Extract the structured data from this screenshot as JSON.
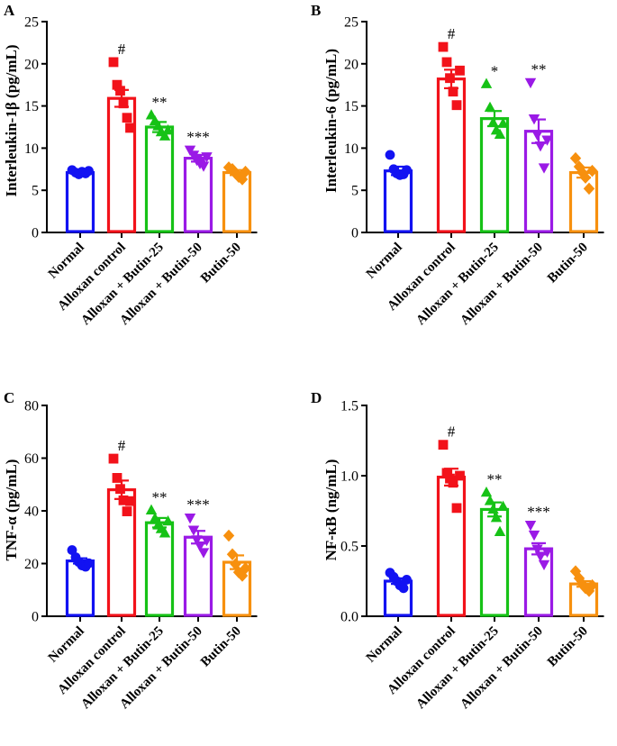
{
  "figure": {
    "categories": [
      "Normal",
      "Alloxan control",
      "Alloxan + Butin-25",
      "Alloxan + Butin-50",
      "Butin-50"
    ],
    "colors": [
      "#1212F2",
      "#F2121A",
      "#16C216",
      "#9A1AE6",
      "#F7900E"
    ],
    "markers": [
      "circle",
      "square",
      "triangle-up",
      "triangle-down",
      "diamond"
    ]
  },
  "chart_data": [
    {
      "type": "bar",
      "panel": "A",
      "ylabel": "Interleukin-1β (pg/mL)",
      "ylim": [
        0,
        25
      ],
      "yticks": [
        0,
        5,
        10,
        15,
        20,
        25
      ],
      "yticklabels": [
        "0",
        "5",
        "10",
        "15",
        "20",
        "25"
      ],
      "categories": [
        "Normal",
        "Alloxan control",
        "Alloxan + Butin-25",
        "Alloxan + Butin-50",
        "Butin-50"
      ],
      "values": [
        7.1,
        15.9,
        12.5,
        8.8,
        7.1
      ],
      "sem": [
        0.2,
        1.0,
        0.6,
        0.4,
        0.3
      ],
      "points": [
        [
          7.4,
          7.1,
          6.9,
          7.2,
          7.0,
          7.3
        ],
        [
          20.2,
          17.5,
          16.8,
          15.3,
          13.6,
          12.4
        ],
        [
          13.9,
          13.2,
          12.6,
          11.9,
          11.4,
          12.1
        ],
        [
          9.8,
          9.2,
          8.6,
          8.2,
          7.9,
          9.0
        ],
        [
          7.7,
          7.5,
          7.0,
          6.6,
          6.3,
          7.2
        ]
      ],
      "annotations": [
        "",
        "#",
        "**",
        "***",
        ""
      ]
    },
    {
      "type": "bar",
      "panel": "B",
      "ylabel": "Interleukin-6 (pg/mL)",
      "ylim": [
        0,
        25
      ],
      "yticks": [
        0,
        5,
        10,
        15,
        20,
        25
      ],
      "yticklabels": [
        "0",
        "5",
        "10",
        "15",
        "20",
        "25"
      ],
      "categories": [
        "Normal",
        "Alloxan control",
        "Alloxan + Butin-25",
        "Alloxan + Butin-50",
        "Butin-50"
      ],
      "values": [
        7.3,
        18.2,
        13.5,
        12.0,
        7.1
      ],
      "sem": [
        0.5,
        1.1,
        0.9,
        1.4,
        0.6
      ],
      "points": [
        [
          9.2,
          7.5,
          7.0,
          6.8,
          6.9,
          7.4
        ],
        [
          22.0,
          20.2,
          18.3,
          16.7,
          15.1,
          19.2
        ],
        [
          17.6,
          14.8,
          13.0,
          12.1,
          11.6,
          12.9
        ],
        [
          17.8,
          13.5,
          11.6,
          10.3,
          7.7,
          11.0
        ],
        [
          8.8,
          7.8,
          7.1,
          6.5,
          5.2,
          7.3
        ]
      ],
      "annotations": [
        "",
        "#",
        "*",
        "**",
        ""
      ]
    },
    {
      "type": "bar",
      "panel": "C",
      "ylabel": "TNF-α (pg/mL)",
      "ylim": [
        0,
        80
      ],
      "yticks": [
        0,
        20,
        40,
        60,
        80
      ],
      "yticklabels": [
        "0",
        "20",
        "40",
        "60",
        "80"
      ],
      "categories": [
        "Normal",
        "Alloxan control",
        "Alloxan + Butin-25",
        "Alloxan + Butin-50",
        "Butin-50"
      ],
      "values": [
        21.0,
        48.0,
        35.5,
        30.0,
        20.5
      ],
      "sem": [
        1.0,
        3.5,
        1.8,
        2.4,
        2.6
      ],
      "points": [
        [
          25.1,
          22.4,
          20.6,
          19.3,
          18.8,
          20.1
        ],
        [
          59.8,
          52.5,
          48.3,
          44.0,
          39.8,
          43.7
        ],
        [
          40.2,
          37.1,
          34.5,
          33.1,
          31.5,
          36.0
        ],
        [
          37.4,
          32.8,
          29.1,
          26.8,
          24.3,
          28.9
        ],
        [
          30.6,
          23.5,
          19.8,
          16.7,
          15.4,
          18.2
        ]
      ],
      "annotations": [
        "",
        "#",
        "**",
        "***",
        ""
      ]
    },
    {
      "type": "bar",
      "panel": "D",
      "ylabel": "NF-κB (ng/mL)",
      "ylim": [
        0,
        1.5
      ],
      "yticks": [
        0,
        0.5,
        1.0,
        1.5
      ],
      "yticklabels": [
        "0.0",
        "0.5",
        "1.0",
        "1.5"
      ],
      "categories": [
        "Normal",
        "Alloxan control",
        "Alloxan + Butin-25",
        "Alloxan + Butin-50",
        "Butin-50"
      ],
      "values": [
        0.25,
        0.99,
        0.76,
        0.48,
        0.23
      ],
      "sem": [
        0.02,
        0.06,
        0.05,
        0.04,
        0.02
      ],
      "points": [
        [
          0.31,
          0.28,
          0.25,
          0.22,
          0.2,
          0.26
        ],
        [
          1.22,
          1.02,
          0.98,
          0.95,
          0.77,
          1.0
        ],
        [
          0.88,
          0.82,
          0.76,
          0.7,
          0.6,
          0.78
        ],
        [
          0.65,
          0.58,
          0.48,
          0.43,
          0.37,
          0.46
        ],
        [
          0.32,
          0.27,
          0.23,
          0.2,
          0.18,
          0.22
        ]
      ],
      "annotations": [
        "",
        "#",
        "**",
        "***",
        ""
      ]
    }
  ]
}
